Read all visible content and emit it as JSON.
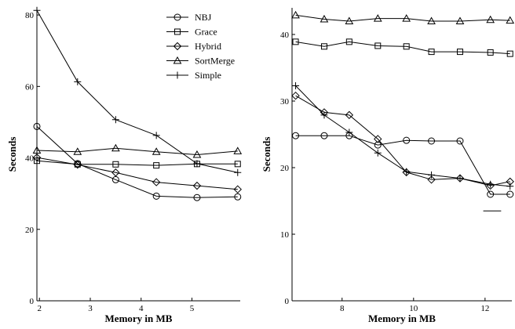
{
  "chart_data": [
    {
      "type": "line",
      "xlabel": "Memory in MB",
      "ylabel": "Seconds",
      "xlim": [
        1.95,
        5.95
      ],
      "ylim": [
        0,
        82
      ],
      "xticks": [
        2,
        3,
        4,
        5
      ],
      "yticks": [
        0,
        20,
        40,
        60,
        80
      ],
      "x": [
        1.95,
        2.75,
        3.5,
        4.3,
        5.1,
        5.9
      ],
      "legend_position": "top-right",
      "series": [
        {
          "name": "NBJ",
          "marker": "circle",
          "values": [
            48.8,
            38.4,
            33.9,
            29.3,
            28.9,
            29.1
          ]
        },
        {
          "name": "Grace",
          "marker": "square",
          "values": [
            39.2,
            38.2,
            38.2,
            37.9,
            38.3,
            38.3
          ]
        },
        {
          "name": "Hybrid",
          "marker": "diamond",
          "values": [
            40.1,
            38.1,
            35.9,
            33.2,
            32.2,
            31.2
          ]
        },
        {
          "name": "SortMerge",
          "marker": "triangle",
          "values": [
            42.1,
            41.7,
            42.7,
            41.7,
            40.9,
            41.9
          ]
        },
        {
          "name": "Simple",
          "marker": "plus",
          "values": [
            81.3,
            61.3,
            50.7,
            46.3,
            38.4,
            35.9
          ]
        }
      ]
    },
    {
      "type": "line",
      "xlabel": "Memory in MB",
      "ylabel": "Seconds",
      "xlim": [
        6.6,
        12.75
      ],
      "ylim": [
        0,
        44
      ],
      "xticks": [
        8,
        10,
        12
      ],
      "yticks": [
        0,
        10,
        20,
        30,
        40
      ],
      "series": [
        {
          "name": "NBJ",
          "marker": "circle",
          "x": [
            6.7,
            7.5,
            8.2,
            9.0,
            9.8,
            10.5,
            11.3,
            12.15,
            12.7
          ],
          "values": [
            24.8,
            24.8,
            24.8,
            23.4,
            24.1,
            24.0,
            24.0,
            16.0,
            16.0
          ]
        },
        {
          "name": "Grace",
          "marker": "square",
          "x": [
            6.7,
            7.5,
            8.2,
            9.0,
            9.8,
            10.5,
            11.3,
            12.15,
            12.7
          ],
          "values": [
            38.9,
            38.2,
            38.9,
            38.3,
            38.2,
            37.4,
            37.4,
            37.3,
            37.1
          ]
        },
        {
          "name": "Hybrid",
          "marker": "diamond",
          "x": [
            6.7,
            7.5,
            8.2,
            9.0,
            9.8,
            10.5,
            11.3,
            12.15,
            12.7
          ],
          "values": [
            30.8,
            28.3,
            27.9,
            24.3,
            19.3,
            18.2,
            18.4,
            17.3,
            17.9
          ]
        },
        {
          "name": "SortMerge",
          "marker": "triangle",
          "x": [
            6.7,
            7.5,
            8.2,
            9.0,
            9.8,
            10.5,
            11.3,
            12.15,
            12.7
          ],
          "values": [
            42.9,
            42.3,
            42.0,
            42.4,
            42.4,
            42.0,
            42.0,
            42.2,
            42.1
          ]
        },
        {
          "name": "Simple",
          "marker": "plus",
          "x": [
            6.7,
            7.5,
            8.2,
            9.0,
            9.8,
            10.5,
            11.3,
            12.15,
            12.7
          ],
          "values": [
            32.3,
            27.9,
            25.3,
            22.2,
            19.4,
            18.9,
            18.4,
            17.5,
            17.2
          ]
        }
      ],
      "annotations": [
        {
          "type": "dash",
          "x": [
            11.95,
            12.45
          ],
          "y": 13.5
        }
      ]
    }
  ]
}
